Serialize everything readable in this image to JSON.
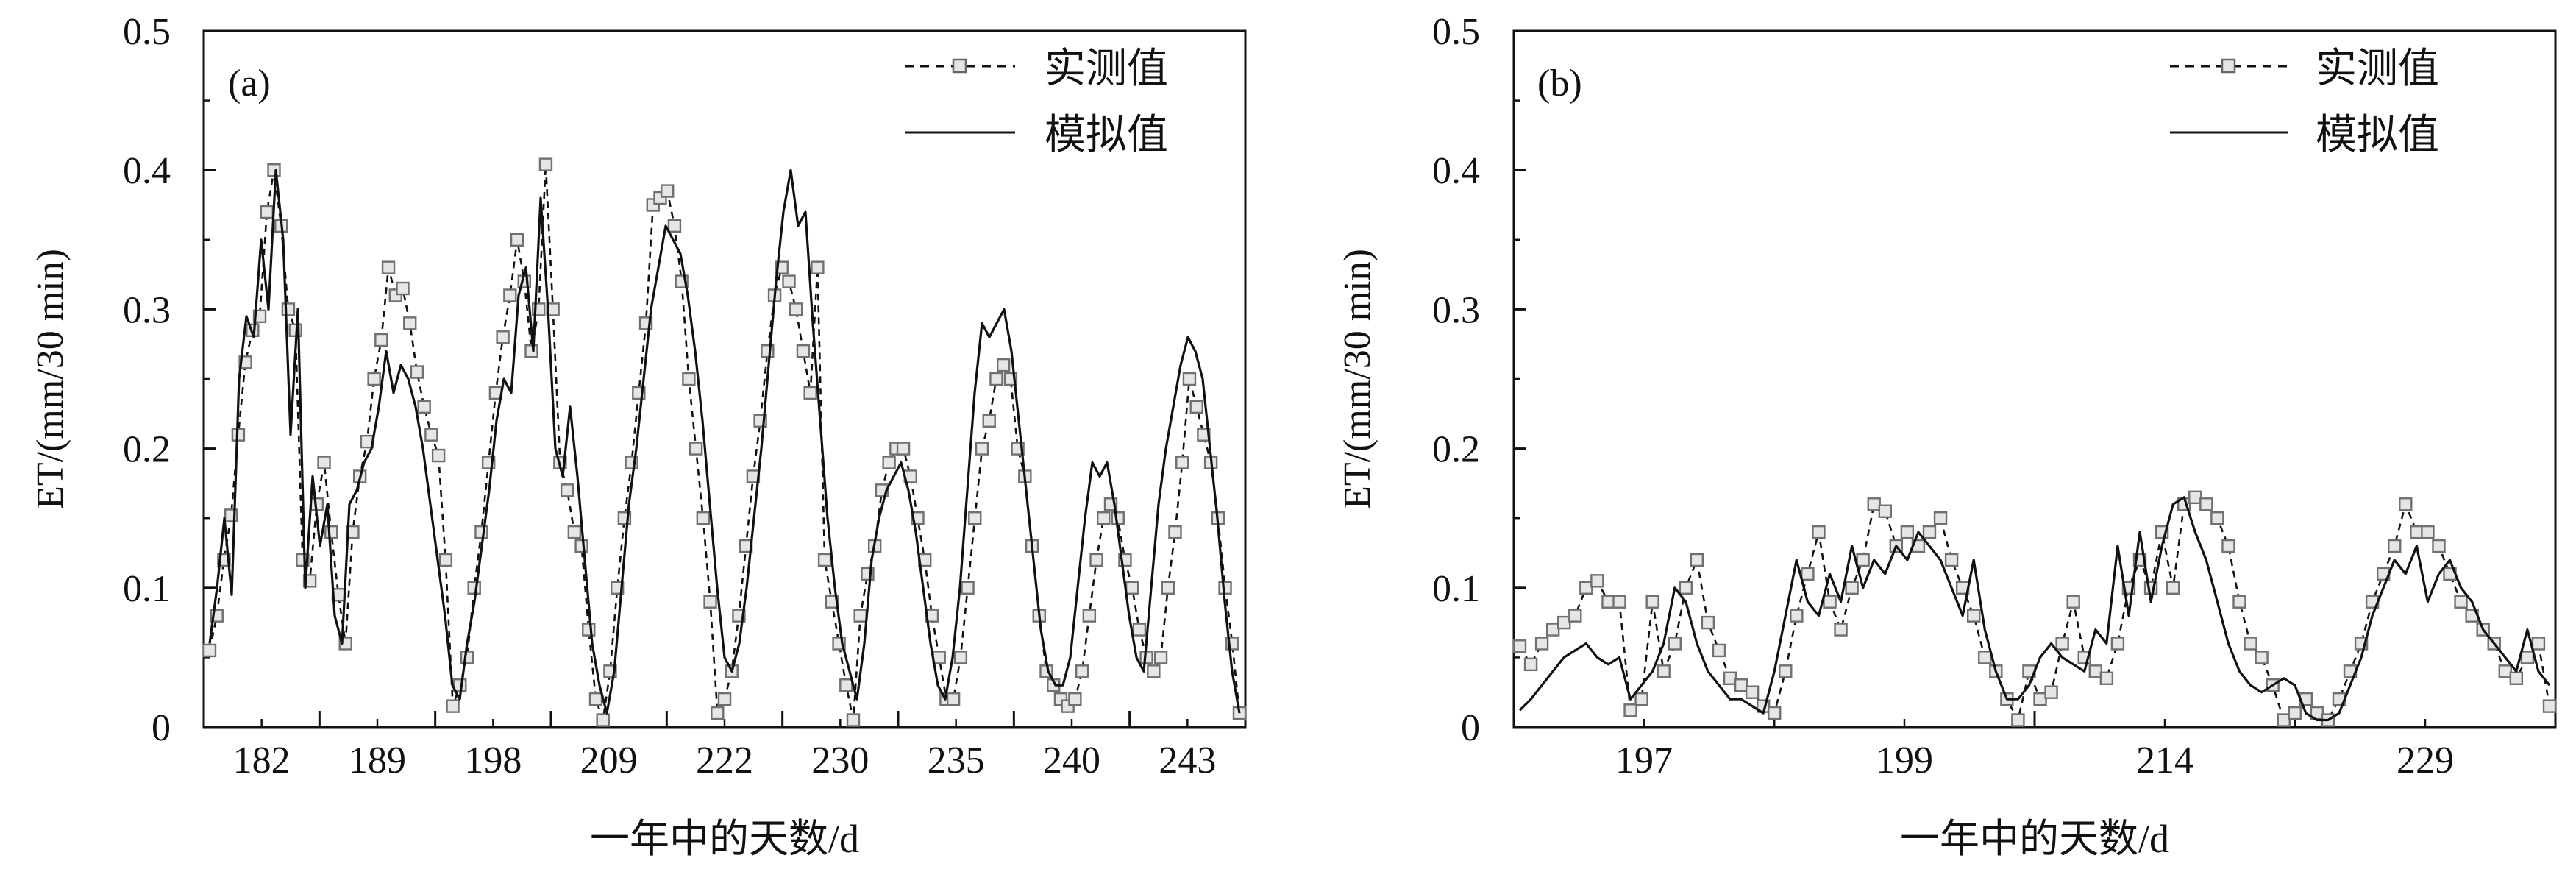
{
  "chart_data": [
    {
      "type": "line",
      "panel_label": "(a)",
      "ylabel": "ET/(mm/30 min)",
      "xlabel": "一年中的天数/d",
      "ylim": [
        0,
        0.5
      ],
      "yticks": [
        "0",
        "0.1",
        "0.2",
        "0.3",
        "0.4",
        "0.5"
      ],
      "day_labels": [
        "182",
        "189",
        "198",
        "209",
        "222",
        "230",
        "235",
        "240",
        "243"
      ],
      "legend": {
        "placement": "top-right",
        "entries": [
          "实测值",
          "模拟值"
        ]
      },
      "series": [
        {
          "name": "实测值",
          "style": "dashed-square-markers",
          "values": [
            0.055,
            0.08,
            0.12,
            0.152,
            0.21,
            0.262,
            0.285,
            0.295,
            0.37,
            0.4,
            0.36,
            0.3,
            0.285,
            0.12,
            0.105,
            0.16,
            0.19,
            0.14,
            0.095,
            0.06,
            0.14,
            0.18,
            0.205,
            0.25,
            0.278,
            0.33,
            0.31,
            0.315,
            0.29,
            0.255,
            0.23,
            0.21,
            0.195,
            0.12,
            0.015,
            0.03,
            0.05,
            0.1,
            0.14,
            0.19,
            0.24,
            0.28,
            0.31,
            0.35,
            0.32,
            0.27,
            0.3,
            0.404,
            0.3,
            0.19,
            0.17,
            0.14,
            0.13,
            0.07,
            0.02,
            0.005,
            0.04,
            0.1,
            0.15,
            0.19,
            0.24,
            0.29,
            0.375,
            0.38,
            0.385,
            0.36,
            0.32,
            0.25,
            0.2,
            0.15,
            0.09,
            0.01,
            0.02,
            0.04,
            0.08,
            0.13,
            0.18,
            0.22,
            0.27,
            0.31,
            0.33,
            0.32,
            0.3,
            0.27,
            0.24,
            0.33,
            0.12,
            0.09,
            0.06,
            0.03,
            0.005,
            0.08,
            0.11,
            0.13,
            0.17,
            0.19,
            0.2,
            0.2,
            0.18,
            0.15,
            0.12,
            0.08,
            0.05,
            0.02,
            0.02,
            0.05,
            0.1,
            0.15,
            0.2,
            0.22,
            0.25,
            0.26,
            0.25,
            0.2,
            0.18,
            0.13,
            0.08,
            0.04,
            0.03,
            0.02,
            0.015,
            0.02,
            0.04,
            0.08,
            0.12,
            0.15,
            0.16,
            0.15,
            0.12,
            0.1,
            0.07,
            0.05,
            0.04,
            0.05,
            0.1,
            0.14,
            0.19,
            0.25,
            0.23,
            0.21,
            0.19,
            0.15,
            0.1,
            0.06,
            0.01
          ]
        },
        {
          "name": "模拟值",
          "style": "solid",
          "values": [
            0.06,
            0.1,
            0.15,
            0.095,
            0.25,
            0.295,
            0.28,
            0.35,
            0.3,
            0.4,
            0.35,
            0.21,
            0.3,
            0.1,
            0.18,
            0.13,
            0.16,
            0.08,
            0.06,
            0.16,
            0.17,
            0.19,
            0.2,
            0.23,
            0.27,
            0.24,
            0.26,
            0.25,
            0.23,
            0.2,
            0.16,
            0.12,
            0.08,
            0.03,
            0.02,
            0.06,
            0.09,
            0.13,
            0.17,
            0.22,
            0.25,
            0.24,
            0.31,
            0.33,
            0.27,
            0.38,
            0.3,
            0.2,
            0.18,
            0.23,
            0.18,
            0.12,
            0.06,
            0.03,
            0.01,
            0.04,
            0.1,
            0.16,
            0.2,
            0.25,
            0.3,
            0.33,
            0.36,
            0.35,
            0.34,
            0.31,
            0.27,
            0.22,
            0.16,
            0.1,
            0.05,
            0.04,
            0.06,
            0.1,
            0.15,
            0.2,
            0.26,
            0.32,
            0.37,
            0.4,
            0.36,
            0.37,
            0.29,
            0.22,
            0.15,
            0.1,
            0.06,
            0.04,
            0.02,
            0.06,
            0.12,
            0.15,
            0.17,
            0.18,
            0.19,
            0.17,
            0.14,
            0.1,
            0.06,
            0.03,
            0.02,
            0.05,
            0.1,
            0.17,
            0.24,
            0.29,
            0.28,
            0.29,
            0.3,
            0.27,
            0.22,
            0.17,
            0.12,
            0.07,
            0.04,
            0.03,
            0.03,
            0.05,
            0.1,
            0.15,
            0.19,
            0.18,
            0.19,
            0.16,
            0.12,
            0.08,
            0.05,
            0.04,
            0.1,
            0.16,
            0.2,
            0.23,
            0.26,
            0.28,
            0.27,
            0.25,
            0.2,
            0.15,
            0.09,
            0.04,
            0.01
          ]
        }
      ]
    },
    {
      "type": "line",
      "panel_label": "(b)",
      "ylabel": "ET/(mm/30 min)",
      "xlabel": "一年中的天数/d",
      "ylim": [
        0,
        0.5
      ],
      "yticks": [
        "0",
        "0.1",
        "0.2",
        "0.3",
        "0.4",
        "0.5"
      ],
      "day_labels": [
        "197",
        "199",
        "214",
        "229"
      ],
      "legend": {
        "placement": "top-right",
        "entries": [
          "实测值",
          "模拟值"
        ]
      },
      "series": [
        {
          "name": "实测值",
          "style": "dashed-square-markers",
          "values": [
            0.058,
            0.045,
            0.06,
            0.07,
            0.075,
            0.08,
            0.1,
            0.105,
            0.09,
            0.09,
            0.012,
            0.02,
            0.09,
            0.04,
            0.06,
            0.1,
            0.12,
            0.075,
            0.055,
            0.035,
            0.03,
            0.025,
            0.015,
            0.01,
            0.04,
            0.08,
            0.11,
            0.14,
            0.09,
            0.07,
            0.1,
            0.12,
            0.16,
            0.155,
            0.13,
            0.14,
            0.13,
            0.14,
            0.15,
            0.12,
            0.1,
            0.08,
            0.05,
            0.04,
            0.02,
            0.005,
            0.04,
            0.02,
            0.025,
            0.06,
            0.09,
            0.05,
            0.04,
            0.035,
            0.06,
            0.1,
            0.12,
            0.1,
            0.14,
            0.1,
            0.16,
            0.165,
            0.16,
            0.15,
            0.13,
            0.09,
            0.06,
            0.05,
            0.03,
            0.005,
            0.01,
            0.02,
            0.01,
            0.005,
            0.02,
            0.04,
            0.06,
            0.09,
            0.11,
            0.13,
            0.16,
            0.14,
            0.14,
            0.13,
            0.11,
            0.09,
            0.08,
            0.07,
            0.06,
            0.04,
            0.035,
            0.05,
            0.06,
            0.015
          ]
        },
        {
          "name": "模拟值",
          "style": "solid",
          "values": [
            0.012,
            0.02,
            0.03,
            0.04,
            0.05,
            0.055,
            0.06,
            0.05,
            0.045,
            0.05,
            0.02,
            0.03,
            0.04,
            0.06,
            0.1,
            0.09,
            0.06,
            0.04,
            0.03,
            0.02,
            0.02,
            0.015,
            0.01,
            0.04,
            0.08,
            0.12,
            0.09,
            0.08,
            0.11,
            0.09,
            0.13,
            0.1,
            0.12,
            0.11,
            0.13,
            0.12,
            0.14,
            0.13,
            0.12,
            0.1,
            0.08,
            0.12,
            0.07,
            0.04,
            0.02,
            0.02,
            0.03,
            0.05,
            0.06,
            0.05,
            0.045,
            0.04,
            0.07,
            0.06,
            0.13,
            0.08,
            0.14,
            0.09,
            0.13,
            0.16,
            0.165,
            0.14,
            0.12,
            0.09,
            0.06,
            0.04,
            0.03,
            0.025,
            0.03,
            0.035,
            0.03,
            0.01,
            0.005,
            0.005,
            0.01,
            0.03,
            0.05,
            0.08,
            0.1,
            0.12,
            0.11,
            0.13,
            0.09,
            0.11,
            0.12,
            0.1,
            0.09,
            0.07,
            0.06,
            0.05,
            0.04,
            0.07,
            0.04,
            0.03
          ]
        }
      ]
    }
  ]
}
